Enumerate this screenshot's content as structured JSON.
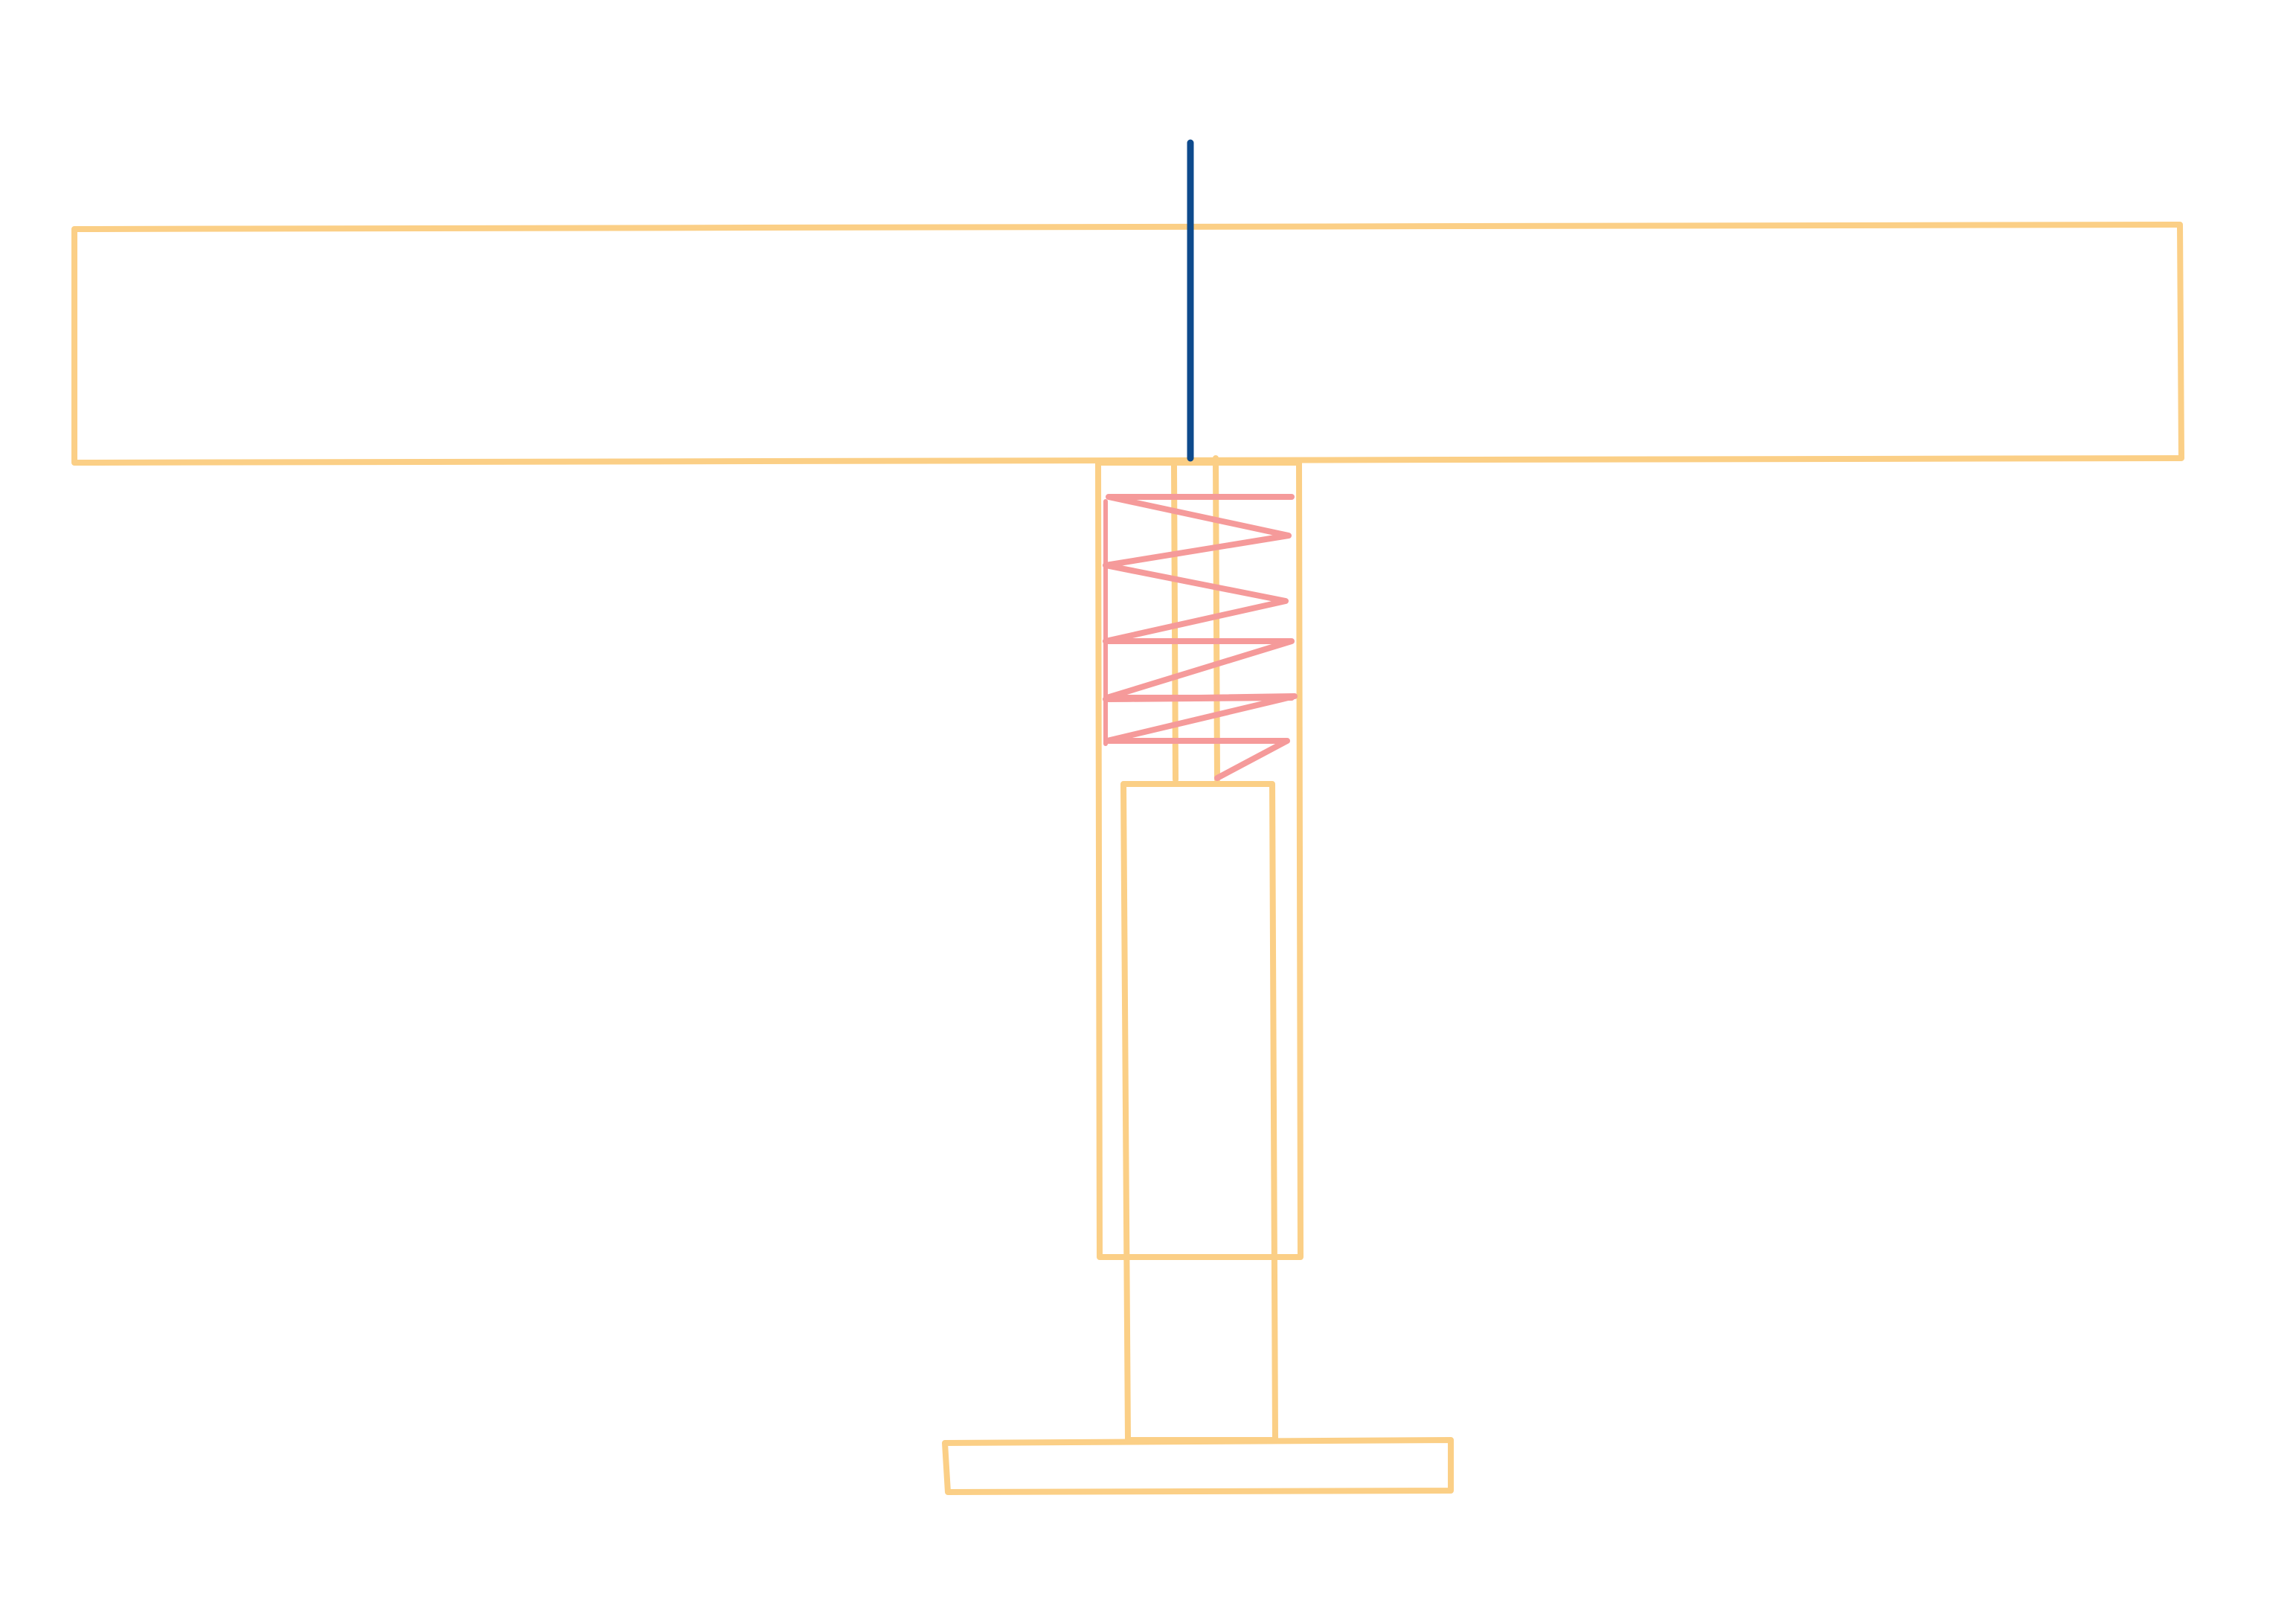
{
  "colors": {
    "background": "#ffffff",
    "frame": "#fbcf86",
    "spring": "#f59a9a",
    "rod": "#0d4a8c"
  },
  "shapes": [
    {
      "name": "top-plate",
      "role": "frame"
    },
    {
      "name": "upper-sleeve",
      "role": "frame"
    },
    {
      "name": "inner-guide-left",
      "role": "frame"
    },
    {
      "name": "inner-guide-right",
      "role": "frame"
    },
    {
      "name": "lower-piston",
      "role": "frame"
    },
    {
      "name": "base-plate",
      "role": "frame"
    },
    {
      "name": "compression-spring",
      "role": "spring"
    },
    {
      "name": "center-rod",
      "role": "rod"
    }
  ]
}
